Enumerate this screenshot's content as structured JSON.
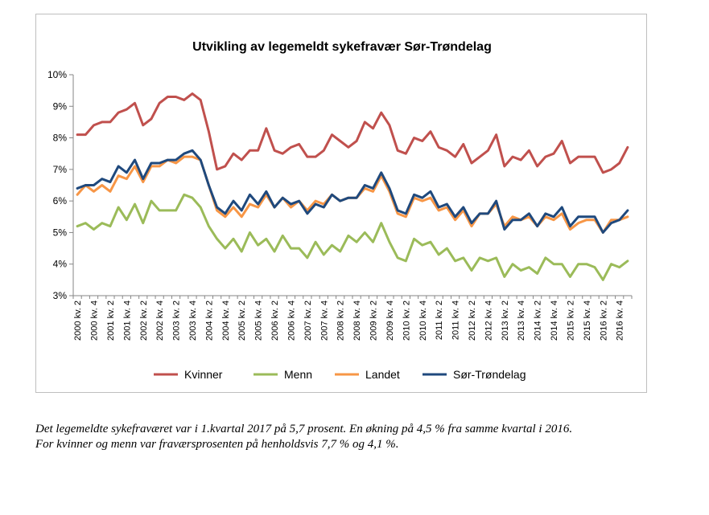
{
  "chart_data": {
    "type": "line",
    "title": "Utvikling av legemeldt sykefravær Sør-Trøndelag",
    "xlabel": "",
    "ylabel": "",
    "ylim": [
      3,
      10
    ],
    "yticks": [
      "3%",
      "4%",
      "5%",
      "6%",
      "7%",
      "8%",
      "9%",
      "10%"
    ],
    "grid": false,
    "legend_position": "bottom",
    "categories": [
      "2000 kv. 2",
      "2000 kv. 3",
      "2000 kv. 4",
      "2001 kv. 1",
      "2001 kv. 2",
      "2001 kv. 3",
      "2001 kv. 4",
      "2002 kv. 1",
      "2002 kv. 2",
      "2002 kv. 3",
      "2002 kv. 4",
      "2003 kv. 1",
      "2003 kv. 2",
      "2003 kv. 3",
      "2003 kv. 4",
      "2004 kv. 1",
      "2004 kv. 2",
      "2004 kv. 3",
      "2004 kv. 4",
      "2005 kv. 1",
      "2005 kv. 2",
      "2005 kv. 3",
      "2005 kv. 4",
      "2006 kv. 1",
      "2006 kv. 2",
      "2006 kv. 3",
      "2006 kv. 4",
      "2007 kv. 1",
      "2007 kv. 2",
      "2007 kv. 3",
      "2007 kv. 4",
      "2008 kv. 1",
      "2008 kv. 2",
      "2008 kv. 3",
      "2008 kv. 4",
      "2009 kv. 1",
      "2009 kv. 2",
      "2009 kv. 3",
      "2009 kv. 4",
      "2010 kv. 1",
      "2010 kv. 2",
      "2010 kv. 3",
      "2010 kv. 4",
      "2011 kv. 1",
      "2011 kv. 2",
      "2011 kv. 3",
      "2011 kv. 4",
      "2012 kv. 1",
      "2012 kv. 2",
      "2012 kv. 3",
      "2012 kv. 4",
      "2013 kv. 1",
      "2013 kv. 2",
      "2013 kv. 3",
      "2013 kv. 4",
      "2014 kv. 1",
      "2014 kv. 2",
      "2014 kv. 3",
      "2014 kv. 4",
      "2015 kv. 1",
      "2015 kv. 2",
      "2015 kv. 3",
      "2015 kv. 4",
      "2016 kv. 1",
      "2016 kv. 2",
      "2016 kv. 3",
      "2016 kv. 4",
      "2017 kv. 1"
    ],
    "tick_labels": [
      "2000 kv. 2",
      "2000 kv. 4",
      "2001 kv. 2",
      "2001 kv. 4",
      "2002 kv. 2",
      "2002 kv. 4",
      "2003 kv. 2",
      "2003 kv. 4",
      "2004 kv. 2",
      "2004 kv. 4",
      "2005 kv. 2",
      "2005 kv. 4",
      "2006 kv. 2",
      "2006 kv. 4",
      "2007 kv. 2",
      "2007 kv. 4",
      "2008 kv. 2",
      "2008 kv. 4",
      "2009 kv. 2",
      "2009 kv. 4",
      "2010 kv. 2",
      "2010 kv. 4",
      "2011 kv. 2",
      "2011 kv. 4",
      "2012 kv. 2",
      "2012 kv. 4",
      "2013 kv. 2",
      "2013 kv. 4",
      "2014 kv. 2",
      "2014 kv. 4",
      "2015 kv. 2",
      "2015 kv. 4",
      "2016 kv. 2",
      "2016 kv. 4"
    ],
    "series": [
      {
        "name": "Kvinner",
        "color": "#c0504d",
        "values": [
          8.1,
          8.1,
          8.4,
          8.5,
          8.5,
          8.8,
          8.9,
          9.1,
          8.4,
          8.6,
          9.1,
          9.3,
          9.3,
          9.2,
          9.4,
          9.2,
          8.2,
          7.0,
          7.1,
          7.5,
          7.3,
          7.6,
          7.6,
          8.3,
          7.6,
          7.5,
          7.7,
          7.8,
          7.4,
          7.4,
          7.6,
          8.1,
          7.9,
          7.7,
          7.9,
          8.5,
          8.3,
          8.8,
          8.4,
          7.6,
          7.5,
          8.0,
          7.9,
          8.2,
          7.7,
          7.6,
          7.4,
          7.8,
          7.2,
          7.4,
          7.6,
          8.1,
          7.1,
          7.4,
          7.3,
          7.6,
          7.1,
          7.4,
          7.5,
          7.9,
          7.2,
          7.4,
          7.4,
          7.4,
          6.9,
          7.0,
          7.2,
          7.7
        ]
      },
      {
        "name": "Menn",
        "color": "#9bbb59",
        "values": [
          5.2,
          5.3,
          5.1,
          5.3,
          5.2,
          5.8,
          5.4,
          5.9,
          5.3,
          6.0,
          5.7,
          5.7,
          5.7,
          6.2,
          6.1,
          5.8,
          5.2,
          4.8,
          4.5,
          4.8,
          4.4,
          5.0,
          4.6,
          4.8,
          4.4,
          4.9,
          4.5,
          4.5,
          4.2,
          4.7,
          4.3,
          4.6,
          4.4,
          4.9,
          4.7,
          5.0,
          4.7,
          5.3,
          4.7,
          4.2,
          4.1,
          4.8,
          4.6,
          4.7,
          4.3,
          4.5,
          4.1,
          4.2,
          3.8,
          4.2,
          4.1,
          4.2,
          3.6,
          4.0,
          3.8,
          3.9,
          3.7,
          4.2,
          4.0,
          4.0,
          3.6,
          4.0,
          4.0,
          3.9,
          3.5,
          4.0,
          3.9,
          4.1
        ]
      },
      {
        "name": "Landet",
        "color": "#f79646",
        "values": [
          6.2,
          6.5,
          6.3,
          6.5,
          6.3,
          6.8,
          6.7,
          7.1,
          6.6,
          7.1,
          7.1,
          7.3,
          7.2,
          7.4,
          7.4,
          7.3,
          6.5,
          5.7,
          5.5,
          5.8,
          5.5,
          5.9,
          5.8,
          6.2,
          5.8,
          6.1,
          5.8,
          6.0,
          5.7,
          6.0,
          5.9,
          6.2,
          6.0,
          6.1,
          6.1,
          6.4,
          6.3,
          6.8,
          6.3,
          5.6,
          5.5,
          6.1,
          6.0,
          6.1,
          5.7,
          5.8,
          5.4,
          5.7,
          5.2,
          5.6,
          5.6,
          5.9,
          5.2,
          5.5,
          5.4,
          5.5,
          5.2,
          5.5,
          5.4,
          5.6,
          5.1,
          5.3,
          5.4,
          5.4,
          5.0,
          5.4,
          5.4,
          5.5
        ]
      },
      {
        "name": "Sør-Trøndelag",
        "color": "#1f497d",
        "values": [
          6.4,
          6.5,
          6.5,
          6.7,
          6.6,
          7.1,
          6.9,
          7.3,
          6.7,
          7.2,
          7.2,
          7.3,
          7.3,
          7.5,
          7.6,
          7.3,
          6.5,
          5.8,
          5.6,
          6.0,
          5.7,
          6.2,
          5.9,
          6.3,
          5.8,
          6.1,
          5.9,
          6.0,
          5.6,
          5.9,
          5.8,
          6.2,
          6.0,
          6.1,
          6.1,
          6.5,
          6.4,
          6.9,
          6.4,
          5.7,
          5.6,
          6.2,
          6.1,
          6.3,
          5.8,
          5.9,
          5.5,
          5.8,
          5.3,
          5.6,
          5.6,
          6.0,
          5.1,
          5.4,
          5.4,
          5.6,
          5.2,
          5.6,
          5.5,
          5.8,
          5.2,
          5.5,
          5.5,
          5.5,
          5.0,
          5.3,
          5.4,
          5.7
        ]
      }
    ]
  },
  "caption": {
    "line1": "Det legemeldte sykefraværet var i 1.kvartal 2017 på 5,7 prosent. En økning på 4,5 % fra samme kvartal i 2016.",
    "line2": "For kvinner og menn var fraværsprosenten på henholdsvis 7,7 % og 4,1 %."
  }
}
